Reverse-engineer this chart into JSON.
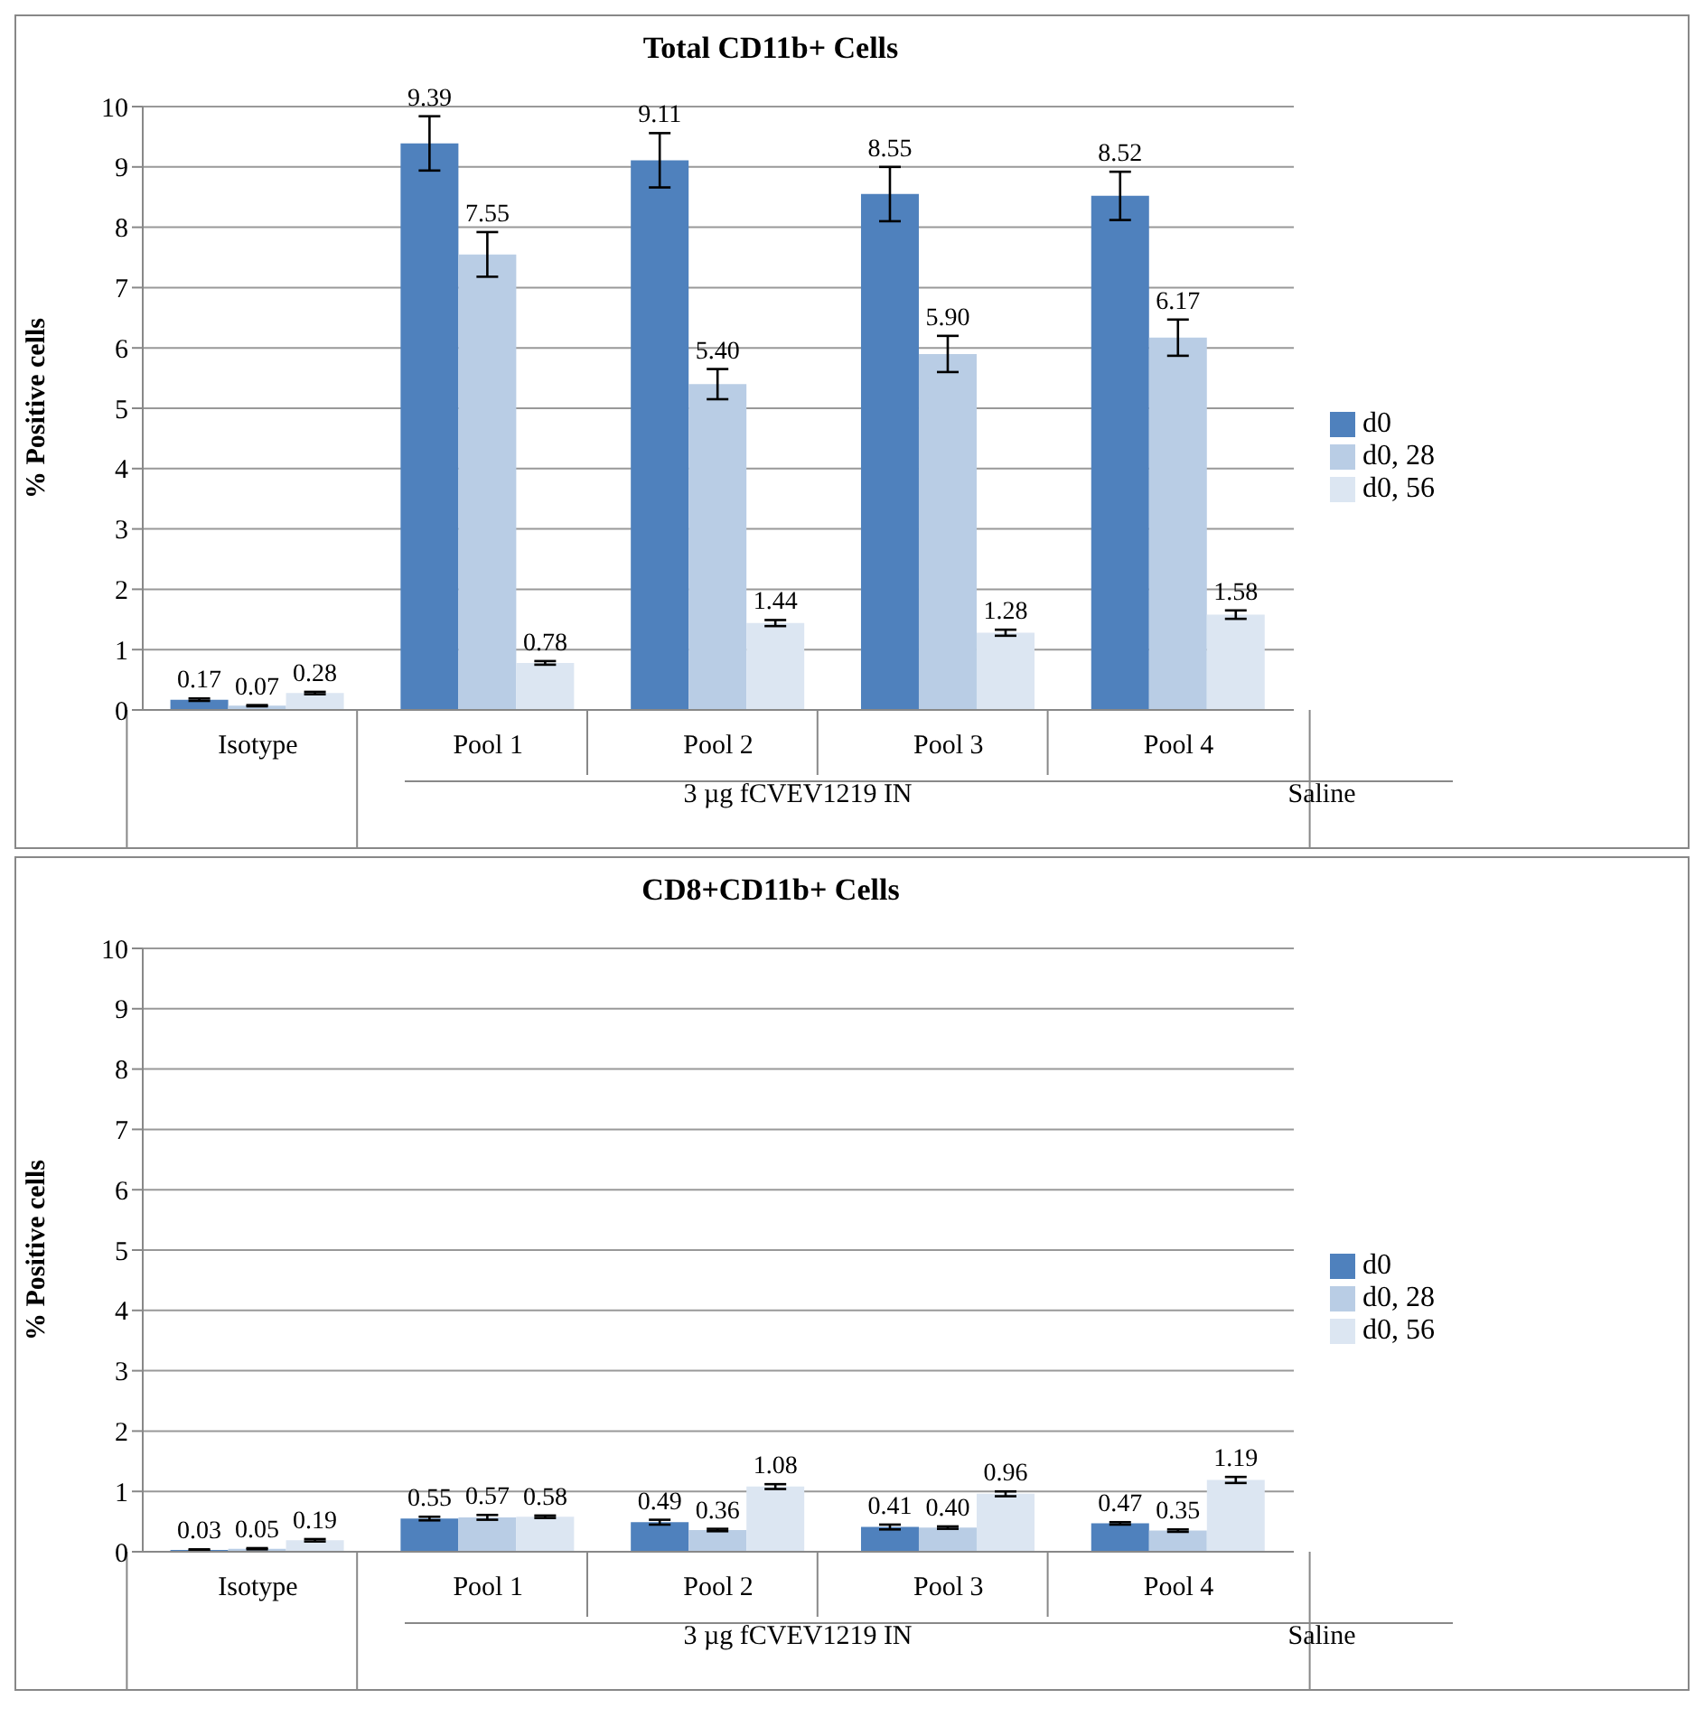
{
  "chart_data": [
    {
      "type": "bar",
      "title": "Total CD11b+ Cells",
      "ylabel": "% Positive cells",
      "categories": [
        "Isotype",
        "Pool 1",
        "Pool 2",
        "Pool 3",
        "Pool 4"
      ],
      "ylim": [
        0,
        10
      ],
      "yticks": [
        0,
        1,
        2,
        3,
        4,
        5,
        6,
        7,
        8,
        9,
        10
      ],
      "grid": "y",
      "legend": "right",
      "annotations": [
        "3 µg fCVEV1219 IN",
        "Saline"
      ],
      "series": [
        {
          "name": "d0",
          "color": "#4f81bd",
          "values": [
            0.17,
            9.39,
            9.11,
            8.55,
            8.52
          ],
          "errors": [
            0.02,
            0.45,
            0.45,
            0.45,
            0.4
          ],
          "value_labels": [
            "0.17",
            "9.39",
            "9.11",
            "8.55",
            "8.52"
          ]
        },
        {
          "name": "d0, 28",
          "color": "#b9cde5",
          "values": [
            0.07,
            7.55,
            5.4,
            5.9,
            6.17
          ],
          "errors": [
            0.01,
            0.37,
            0.25,
            0.3,
            0.3
          ],
          "value_labels": [
            "0.07",
            "7.55",
            "5.40",
            "5.90",
            "6.17"
          ]
        },
        {
          "name": "d0, 56",
          "color": "#dce6f2",
          "values": [
            0.28,
            0.78,
            1.44,
            1.28,
            1.58
          ],
          "errors": [
            0.02,
            0.03,
            0.05,
            0.05,
            0.07
          ],
          "value_labels": [
            "0.28",
            "0.78",
            "1.44",
            "1.28",
            "1.58"
          ]
        }
      ]
    },
    {
      "type": "bar",
      "title": "CD8+CD11b+ Cells",
      "ylabel": "% Positive cells",
      "categories": [
        "Isotype",
        "Pool 1",
        "Pool 2",
        "Pool 3",
        "Pool 4"
      ],
      "ylim": [
        0,
        10
      ],
      "yticks": [
        0,
        1,
        2,
        3,
        4,
        5,
        6,
        7,
        8,
        9,
        10
      ],
      "grid": "y",
      "legend": "right",
      "annotations": [
        "3 µg fCVEV1219 IN",
        "Saline"
      ],
      "series": [
        {
          "name": "d0",
          "color": "#4f81bd",
          "values": [
            0.03,
            0.55,
            0.49,
            0.41,
            0.47
          ],
          "errors": [
            0.01,
            0.03,
            0.04,
            0.04,
            0.02
          ],
          "value_labels": [
            "0.03",
            "0.55",
            "0.49",
            "0.41",
            "0.47"
          ]
        },
        {
          "name": "d0, 28",
          "color": "#b9cde5",
          "values": [
            0.05,
            0.57,
            0.36,
            0.4,
            0.35
          ],
          "errors": [
            0.01,
            0.04,
            0.02,
            0.02,
            0.02
          ],
          "value_labels": [
            "0.05",
            "0.57",
            "0.36",
            "0.40",
            "0.35"
          ]
        },
        {
          "name": "d0, 56",
          "color": "#dce6f2",
          "values": [
            0.19,
            0.58,
            1.08,
            0.96,
            1.19
          ],
          "errors": [
            0.02,
            0.02,
            0.04,
            0.04,
            0.05
          ],
          "value_labels": [
            "0.19",
            "0.58",
            "1.08",
            "0.96",
            "1.19"
          ]
        }
      ]
    }
  ]
}
